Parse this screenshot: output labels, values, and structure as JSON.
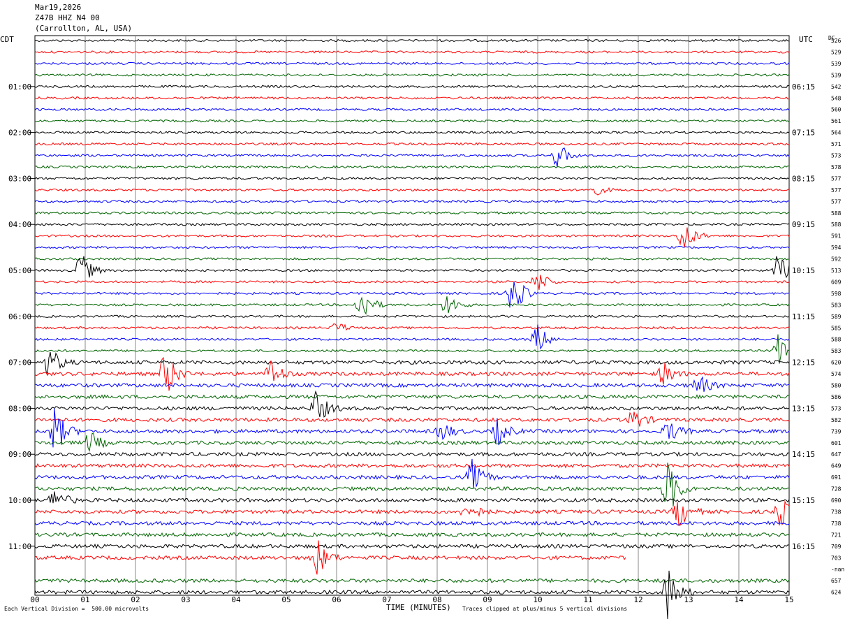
{
  "header": {
    "date": "Mar19,2026",
    "station": "Z47B HHZ N4 00",
    "location": "(Carrollton, AL, USA)"
  },
  "left_axis_title": "CDT",
  "right_axis_title": "UTC",
  "dc_label": "DC",
  "footer": {
    "vertical_division": "Each Vertical Division =  500.00 microvolts",
    "xlabel": "TIME (MINUTES)",
    "clip_note": "Traces clipped at plus/minus 5 vertical divisions"
  },
  "colors": {
    "trace_cycle": [
      "#000000",
      "#ff0000",
      "#0000ff",
      "#006400"
    ],
    "grid": "#888888"
  },
  "chart_data": {
    "type": "line",
    "xlabel": "TIME (MINUTES)",
    "xlim": [
      0,
      15
    ],
    "x_ticks": [
      "00",
      "01",
      "02",
      "03",
      "04",
      "05",
      "06",
      "07",
      "08",
      "09",
      "10",
      "11",
      "12",
      "13",
      "14",
      "15"
    ],
    "left_time_labels": [
      "01:00",
      "02:00",
      "03:00",
      "04:00",
      "05:00",
      "06:00",
      "07:00",
      "08:00",
      "09:00",
      "10:00",
      "11:00"
    ],
    "right_time_labels": [
      "06:15",
      "07:15",
      "08:15",
      "09:15",
      "10:15",
      "11:15",
      "12:15",
      "13:15",
      "14:15",
      "15:15",
      "16:15"
    ],
    "trace_dc_values": [
      "526",
      "529",
      "539",
      "539",
      "542",
      "548",
      "560",
      "561",
      "564",
      "571",
      "573",
      "578",
      "577",
      "577",
      "577",
      "588",
      "588",
      "591",
      "594",
      "592",
      "513",
      "609",
      "598",
      "583",
      "589",
      "585",
      "588",
      "583",
      "620",
      "574",
      "580",
      "586",
      "573",
      "582",
      "739",
      "601",
      "647",
      "649",
      "691",
      "728",
      "690",
      "738",
      "738",
      "721",
      "709",
      "703",
      "-nan",
      "657",
      "624"
    ],
    "events": [
      {
        "trace": 10,
        "minute": 10.4,
        "amp": 1.2
      },
      {
        "trace": 13,
        "minute": 11.1,
        "amp": 0.6
      },
      {
        "trace": 17,
        "minute": 12.9,
        "amp": 1.6
      },
      {
        "trace": 20,
        "minute": 0.9,
        "amp": 1.8
      },
      {
        "trace": 20,
        "minute": 14.8,
        "amp": 1.8
      },
      {
        "trace": 21,
        "minute": 10.0,
        "amp": 1.1
      },
      {
        "trace": 22,
        "minute": 9.5,
        "amp": 2.2
      },
      {
        "trace": 23,
        "minute": 6.5,
        "amp": 1.6
      },
      {
        "trace": 23,
        "minute": 8.2,
        "amp": 1.0
      },
      {
        "trace": 25,
        "minute": 6.0,
        "amp": 0.5
      },
      {
        "trace": 26,
        "minute": 10.0,
        "amp": 1.4
      },
      {
        "trace": 27,
        "minute": 14.8,
        "amp": 1.6
      },
      {
        "trace": 28,
        "minute": 0.3,
        "amp": 1.4
      },
      {
        "trace": 29,
        "minute": 2.6,
        "amp": 2.2
      },
      {
        "trace": 29,
        "minute": 4.7,
        "amp": 1.3
      },
      {
        "trace": 29,
        "minute": 12.5,
        "amp": 1.0
      },
      {
        "trace": 30,
        "minute": 13.2,
        "amp": 1.0
      },
      {
        "trace": 32,
        "minute": 5.6,
        "amp": 1.6
      },
      {
        "trace": 33,
        "minute": 11.9,
        "amp": 1.0
      },
      {
        "trace": 34,
        "minute": 0.4,
        "amp": 2.2
      },
      {
        "trace": 34,
        "minute": 8.1,
        "amp": 0.9
      },
      {
        "trace": 34,
        "minute": 9.2,
        "amp": 1.2
      },
      {
        "trace": 34,
        "minute": 12.6,
        "amp": 1.0
      },
      {
        "trace": 35,
        "minute": 1.1,
        "amp": 1.0
      },
      {
        "trace": 38,
        "minute": 8.7,
        "amp": 1.5
      },
      {
        "trace": 39,
        "minute": 12.6,
        "amp": 2.6
      },
      {
        "trace": 40,
        "minute": 0.4,
        "amp": 1.2
      },
      {
        "trace": 41,
        "minute": 8.6,
        "amp": 1.0
      },
      {
        "trace": 41,
        "minute": 12.8,
        "amp": 1.5
      },
      {
        "trace": 41,
        "minute": 14.8,
        "amp": 1.5
      },
      {
        "trace": 45,
        "minute": 5.6,
        "amp": 1.8
      },
      {
        "trace": 48,
        "minute": 12.6,
        "amp": 2.6
      }
    ]
  }
}
